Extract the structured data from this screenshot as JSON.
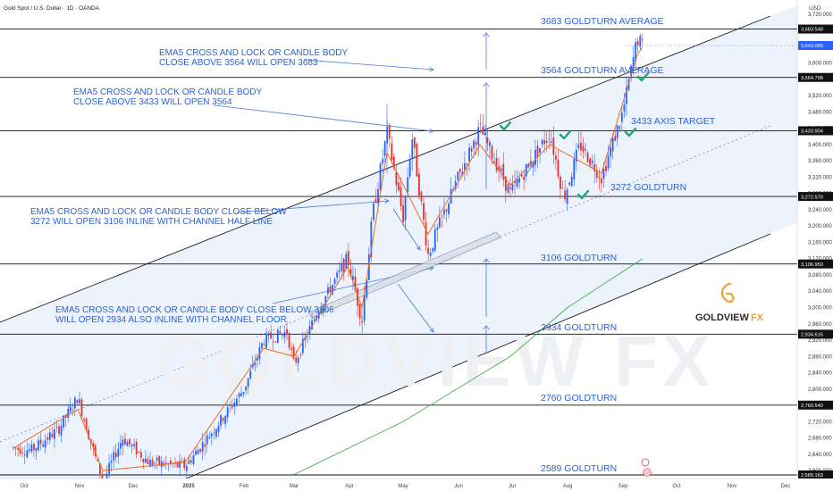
{
  "header": {
    "symbol": "Gold Spot / U.S. Dollar · 1D · OANDA",
    "currency": "USD"
  },
  "watermark": "GOLDVIEW FX",
  "brand": {
    "name_main": "GOLDVIEW",
    "name_accent": "FX",
    "logo_letter": "G"
  },
  "colors": {
    "annotation": "#2d62d4",
    "up": "#2962ff",
    "down": "#e3342f",
    "ema": "#f06b21",
    "ma_long": "#3fb24a",
    "check": "#1fa57a",
    "channel_fill": "#e9f1fb",
    "level_line": "#111111"
  },
  "levels": [
    {
      "label": "3683 GOLDTURN AVERAGE",
      "value": 3683.548,
      "tag": "3,683.548"
    },
    {
      "label": "3564 GOLDTURN AVERAGE",
      "value": 3564.798,
      "tag": "3,564.798"
    },
    {
      "label": "3433 AXIS TARGET",
      "value": 3433.904,
      "tag": "3,433.904"
    },
    {
      "label": "3272 GOLDTURN",
      "value": 3272.57,
      "tag": "3,272.570"
    },
    {
      "label": "3106 GOLDTURN",
      "value": 3106.95,
      "tag": "3,106.950"
    },
    {
      "label": "2934 GOLDTURN",
      "value": 2934.616,
      "tag": "2,934.616"
    },
    {
      "label": "2760 GOLDTURN",
      "value": 2760.54,
      "tag": "2,760.540"
    },
    {
      "label": "2589 GOLDTURN",
      "value": 2589.163,
      "tag": "2,589.163"
    }
  ],
  "current_price": {
    "value": 3643.085,
    "tag": "3,643.085"
  },
  "annotations": [
    {
      "lines": [
        "EMA5 CROSS AND LOCK OR CANDLE BODY",
        "CLOSE ABOVE 3564 WILL OPEN 3683"
      ]
    },
    {
      "lines": [
        "EMA5 CROSS AND LOCK OR CANDLE BODY",
        "CLOSE ABOVE 3433 WILL OPEN 3564"
      ]
    },
    {
      "lines": [
        "EMA5 CROSS AND LOCK OR CANDLE BODY CLOSE BELOW",
        "3272 WILL OPEN 3106 INLINE WITH CHANNEL HALF LINE"
      ]
    },
    {
      "lines": [
        "EMA5 CROSS AND LOCK OR CANDLE BODY CLOSE BELOW 3106",
        "WILL OPEN 2934 ALSO INLINE WITH CHANNEL FLOOR"
      ]
    }
  ],
  "chart_data": {
    "type": "candlestick",
    "title": "Gold Spot / U.S. Dollar · 1D · OANDA",
    "ylim": [
      2580,
      3720
    ],
    "yticks": [
      2600,
      2640,
      2680,
      2720,
      2760,
      2800,
      2840,
      2880,
      2920,
      2960,
      3000,
      3040,
      3080,
      3120,
      3160,
      3200,
      3240,
      3280,
      3320,
      3360,
      3400,
      3440,
      3480,
      3520,
      3560,
      3600,
      3640,
      3680,
      3720
    ],
    "ytick_labels": [
      "2,600.000",
      "2,640.000",
      "2,680.000",
      "2,720.000",
      "2,760.000",
      "2,800.000",
      "2,840.000",
      "2,880.000",
      "2,920.000",
      "2,960.000",
      "3,000.000",
      "3,040.000",
      "3,080.000",
      "3,120.000",
      "3,160.000",
      "3,200.000",
      "3,240.000",
      "3,280.000",
      "3,320.000",
      "3,360.000",
      "3,400.000",
      "3,440.000",
      "3,480.000",
      "3,520.000",
      "3,560.000",
      "3,600.000",
      "3,640.000",
      "3,680.000",
      "3,720.000"
    ],
    "xticks": [
      "Oct",
      "Nov",
      "Dec",
      "2025",
      "Feb",
      "Mar",
      "Apr",
      "May",
      "Jun",
      "Jul",
      "Aug",
      "Sep",
      "Oct",
      "Nov",
      "Dec"
    ],
    "price_path": [
      [
        "2024-09-25",
        2655
      ],
      [
        "2024-10-05",
        2650
      ],
      [
        "2024-10-20",
        2700
      ],
      [
        "2024-10-31",
        2780
      ],
      [
        "2024-11-14",
        2570
      ],
      [
        "2024-11-25",
        2680
      ],
      [
        "2024-12-10",
        2620
      ],
      [
        "2024-12-30",
        2610
      ],
      [
        "2025-01-15",
        2700
      ],
      [
        "2025-02-01",
        2800
      ],
      [
        "2025-02-12",
        2920
      ],
      [
        "2025-02-25",
        2940
      ],
      [
        "2025-03-01",
        2860
      ],
      [
        "2025-03-15",
        3000
      ],
      [
        "2025-03-31",
        3120
      ],
      [
        "2025-04-08",
        2970
      ],
      [
        "2025-04-14",
        3230
      ],
      [
        "2025-04-22",
        3430
      ],
      [
        "2025-05-01",
        3220
      ],
      [
        "2025-05-06",
        3420
      ],
      [
        "2025-05-15",
        3130
      ],
      [
        "2025-05-30",
        3300
      ],
      [
        "2025-06-13",
        3440
      ],
      [
        "2025-06-30",
        3280
      ],
      [
        "2025-07-22",
        3430
      ],
      [
        "2025-07-30",
        3270
      ],
      [
        "2025-08-08",
        3400
      ],
      [
        "2025-08-20",
        3320
      ],
      [
        "2025-09-01",
        3480
      ],
      [
        "2025-09-09",
        3660
      ],
      [
        "2025-09-12",
        3643
      ]
    ],
    "ema_path": [
      [
        "2024-09-25",
        2655
      ],
      [
        "2024-10-31",
        2750
      ],
      [
        "2024-11-14",
        2600
      ],
      [
        "2024-12-30",
        2620
      ],
      [
        "2025-02-12",
        2900
      ],
      [
        "2025-03-01",
        2880
      ],
      [
        "2025-03-31",
        3100
      ],
      [
        "2025-04-08",
        3000
      ],
      [
        "2025-04-22",
        3380
      ],
      [
        "2025-05-15",
        3180
      ],
      [
        "2025-06-13",
        3400
      ],
      [
        "2025-06-30",
        3300
      ],
      [
        "2025-07-22",
        3400
      ],
      [
        "2025-08-20",
        3330
      ],
      [
        "2025-09-09",
        3620
      ],
      [
        "2025-09-12",
        3640
      ]
    ],
    "ma_long_path": [
      [
        "2025-03-01",
        2590
      ],
      [
        "2025-05-01",
        2720
      ],
      [
        "2025-06-30",
        2880
      ],
      [
        "2025-08-01",
        3000
      ],
      [
        "2025-09-12",
        3120
      ]
    ],
    "series": [
      {
        "name": "EMA5",
        "values": []
      }
    ]
  }
}
